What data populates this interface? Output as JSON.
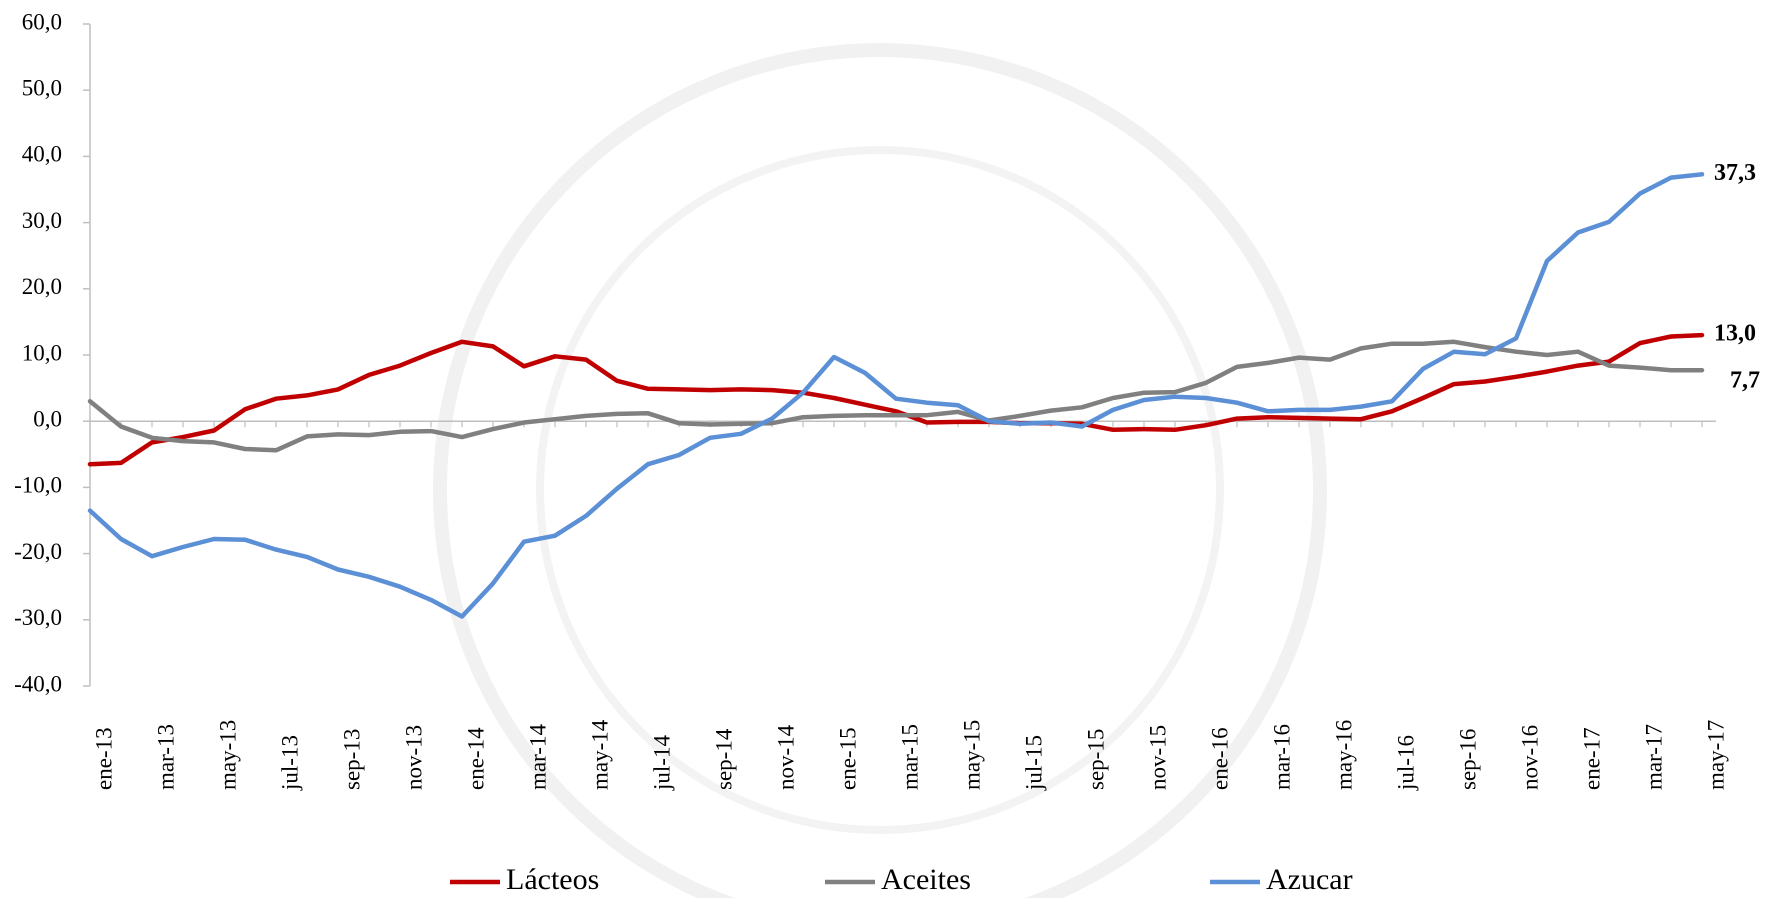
{
  "chart_data": {
    "type": "line",
    "categories": [
      "ene-13",
      null,
      "mar-13",
      null,
      "may-13",
      null,
      "jul-13",
      null,
      "sep-13",
      null,
      "nov-13",
      null,
      "ene-14",
      null,
      "mar-14",
      null,
      "may-14",
      null,
      "jul-14",
      null,
      "sep-14",
      null,
      "nov-14",
      null,
      "ene-15",
      null,
      "mar-15",
      null,
      "may-15",
      null,
      "jul-15",
      null,
      "sep-15",
      null,
      "nov-15",
      null,
      "ene-16",
      null,
      "mar-16",
      null,
      "may-16",
      null,
      "jul-16",
      null,
      "sep-16",
      null,
      "nov-16",
      null,
      "ene-17",
      null,
      "mar-17",
      null,
      "may-17"
    ],
    "ylim": [
      -40,
      60
    ],
    "yticks": [
      {
        "value": -40,
        "label": "-40,0"
      },
      {
        "value": -30,
        "label": "-30,0"
      },
      {
        "value": -20,
        "label": "-20,0"
      },
      {
        "value": -10,
        "label": "-10,0"
      },
      {
        "value": 0,
        "label": "0,0"
      },
      {
        "value": 10,
        "label": "10,0"
      },
      {
        "value": 20,
        "label": "20,0"
      },
      {
        "value": 30,
        "label": "30,0"
      },
      {
        "value": 40,
        "label": "40,0"
      },
      {
        "value": 50,
        "label": "50,0"
      },
      {
        "value": 60,
        "label": "60,0"
      }
    ],
    "grid": false,
    "legend": "bottom",
    "series": [
      {
        "name": "Lácteos",
        "color": "#c00000",
        "label_color": "#c00000",
        "values": [
          -6.5,
          -6.3,
          -3.2,
          -2.4,
          -1.4,
          1.8,
          3.4,
          3.9,
          4.8,
          7.0,
          8.4,
          10.3,
          12.0,
          11.3,
          8.3,
          9.8,
          9.3,
          6.1,
          4.9,
          4.8,
          4.7,
          4.8,
          4.7,
          4.3,
          3.5,
          2.5,
          1.5,
          -0.2,
          -0.1,
          -0.1,
          -0.3,
          -0.3,
          -0.4,
          -1.3,
          -1.2,
          -1.3,
          -0.6,
          0.4,
          0.6,
          0.5,
          0.4,
          0.3,
          1.5,
          3.5,
          5.6,
          6.0,
          6.7,
          7.5,
          8.4,
          9.0,
          11.8,
          12.8,
          13.0
        ],
        "value_labels": [
          null,
          null,
          null,
          null,
          null,
          null,
          null,
          null,
          null,
          null,
          null,
          null,
          null,
          null,
          null,
          null,
          null,
          null,
          null,
          null,
          null,
          null,
          null,
          null,
          null,
          null,
          null,
          null,
          null,
          null,
          null,
          null,
          null,
          null,
          null,
          null,
          null,
          null,
          null,
          null,
          null,
          null,
          null,
          null,
          null,
          null,
          null,
          null,
          null,
          null,
          null,
          null,
          "13,0"
        ]
      },
      {
        "name": "Aceites",
        "color": "#808080",
        "label_color": "#808080",
        "values": [
          3.0,
          -0.8,
          -2.5,
          -3.0,
          -3.2,
          -4.2,
          -4.4,
          -2.3,
          -2.0,
          -2.1,
          -1.6,
          -1.5,
          -2.4,
          -1.2,
          -0.2,
          0.3,
          0.8,
          1.1,
          1.2,
          -0.3,
          -0.5,
          -0.4,
          -0.3,
          0.6,
          0.8,
          0.9,
          0.9,
          0.9,
          1.4,
          0.1,
          0.8,
          1.6,
          2.1,
          3.5,
          4.3,
          4.4,
          5.8,
          8.2,
          8.8,
          9.6,
          9.3,
          11.0,
          11.7,
          11.7,
          12.0,
          11.2,
          10.5,
          10.0,
          10.5,
          8.4,
          8.1,
          7.7,
          7.7
        ],
        "value_labels": [
          null,
          null,
          null,
          null,
          null,
          null,
          null,
          null,
          null,
          null,
          null,
          null,
          null,
          null,
          null,
          null,
          null,
          null,
          null,
          null,
          null,
          null,
          null,
          null,
          null,
          null,
          null,
          null,
          null,
          null,
          null,
          null,
          null,
          null,
          null,
          null,
          null,
          null,
          null,
          null,
          null,
          null,
          null,
          null,
          null,
          null,
          null,
          null,
          null,
          null,
          null,
          null,
          "7,7"
        ]
      },
      {
        "name": "Azucar",
        "color": "#5b8fd6",
        "label_color": "#1f3864",
        "values": [
          -13.5,
          -17.8,
          -20.4,
          -19.0,
          -17.8,
          -17.9,
          -19.4,
          -20.5,
          -22.4,
          -23.5,
          -25.0,
          -27.0,
          -29.5,
          -24.5,
          -18.2,
          -17.3,
          -14.3,
          -10.2,
          -6.5,
          -5.1,
          -2.5,
          -1.9,
          0.4,
          4.3,
          9.7,
          7.3,
          3.4,
          2.8,
          2.4,
          0.0,
          -0.4,
          -0.2,
          -0.8,
          1.7,
          3.2,
          3.7,
          3.5,
          2.8,
          1.5,
          1.7,
          1.7,
          2.2,
          3.0,
          7.9,
          10.5,
          10.1,
          12.5,
          24.2,
          28.5,
          30.1,
          34.4,
          36.8,
          37.3
        ],
        "value_labels": [
          null,
          null,
          null,
          null,
          null,
          null,
          null,
          null,
          null,
          null,
          null,
          null,
          null,
          null,
          null,
          null,
          null,
          null,
          null,
          null,
          null,
          null,
          null,
          null,
          null,
          null,
          null,
          null,
          null,
          null,
          null,
          null,
          null,
          null,
          null,
          null,
          null,
          null,
          null,
          null,
          null,
          null,
          null,
          null,
          null,
          null,
          null,
          null,
          null,
          null,
          null,
          null,
          "37,3"
        ]
      }
    ]
  }
}
